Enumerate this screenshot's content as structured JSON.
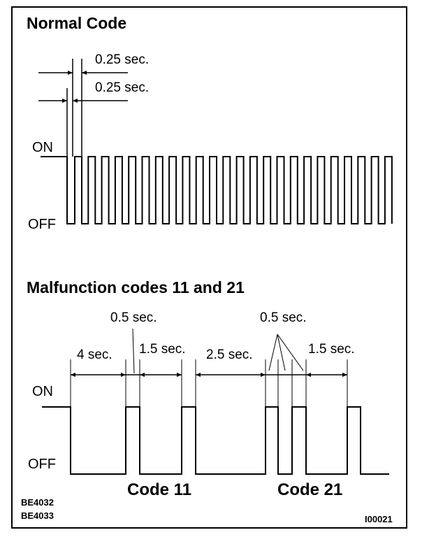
{
  "normal": {
    "title": "Normal Code",
    "dim_on": "0.25 sec.",
    "dim_off": "0.25 sec.",
    "on_label": "ON",
    "off_label": "OFF"
  },
  "malfunction": {
    "title": "Malfunction codes 11 and 21",
    "on_label": "ON",
    "off_label": "OFF",
    "dims": [
      "4 sec.",
      "0.5 sec.",
      "1.5 sec.",
      "2.5 sec.",
      "0.5 sec.",
      "1.5 sec."
    ],
    "code_11": "Code 11",
    "code_21": "Code 21"
  },
  "refs": {
    "left_1": "BE4032",
    "left_2": "BE4033",
    "right": "I00021"
  }
}
